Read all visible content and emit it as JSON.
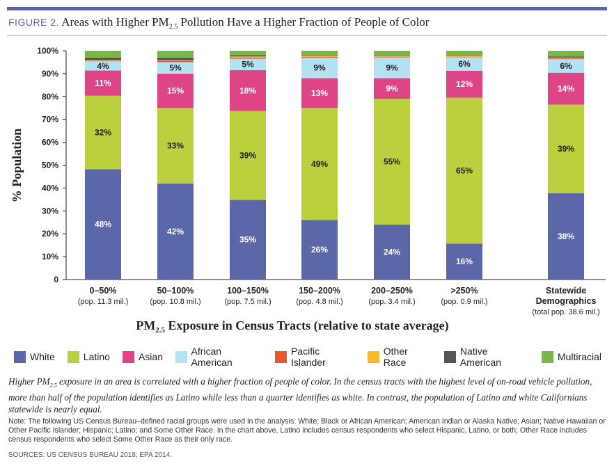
{
  "title": {
    "figure": "FIGURE 2.",
    "text_pre": "Areas with Higher PM",
    "sub": "2.5",
    "text_post": " Pollution Have a Higher Fraction of People of Color"
  },
  "chart_data": {
    "type": "bar",
    "stacked": true,
    "ylabel": "% Population",
    "xlabel_pre": "PM",
    "xlabel_sub": "2.5",
    "xlabel_post": " Exposure in Census Tracts (relative to state average)",
    "ylim": [
      0,
      100
    ],
    "yticks": [
      "0",
      "10%",
      "20%",
      "30%",
      "40%",
      "50%",
      "60%",
      "70%",
      "80%",
      "90%",
      "100%"
    ],
    "legend_position": "bottom",
    "categories": [
      {
        "label": "0–50%",
        "sub": "(pop. 11.3 mil.)"
      },
      {
        "label": "50–100%",
        "sub": "(pop. 10.8 mil.)"
      },
      {
        "label": "100–150%",
        "sub": "(pop. 7.5 mil.)"
      },
      {
        "label": "150–200%",
        "sub": "(pop. 4.8 mil.)"
      },
      {
        "label": "200–250%",
        "sub": "(pop. 3.4 mil.)"
      },
      {
        "label": ">250%",
        "sub": "(pop. 0.9 mil.)"
      },
      {
        "label": "Statewide Demographics",
        "sub": "(total pop. 38.6 mil.)"
      }
    ],
    "series": [
      {
        "name": "White",
        "color": "#5a67a8",
        "values": [
          48,
          42,
          35,
          26,
          24,
          16,
          38
        ],
        "labels": [
          "48%",
          "42%",
          "35%",
          "26%",
          "24%",
          "16%",
          "38%"
        ]
      },
      {
        "name": "Latino",
        "color": "#bcd03f",
        "values": [
          32,
          33,
          39,
          49,
          55,
          65,
          39
        ],
        "labels": [
          "32%",
          "33%",
          "39%",
          "49%",
          "55%",
          "65%",
          "39%"
        ]
      },
      {
        "name": "Asian",
        "color": "#de4585",
        "values": [
          11,
          15,
          18,
          13,
          9,
          12,
          14
        ],
        "labels": [
          "11%",
          "15%",
          "18%",
          "13%",
          "9%",
          "12%",
          "14%"
        ]
      },
      {
        "name": "African American",
        "color": "#b3e2f3",
        "values": [
          4,
          5,
          5,
          9,
          9,
          6,
          6
        ],
        "labels": [
          "4%",
          "5%",
          "5%",
          "9%",
          "9%",
          "6%",
          "6%"
        ]
      },
      {
        "name": "Pacific Islander",
        "color": "#e8582c",
        "values": [
          0.3,
          0.5,
          0.5,
          0.3,
          0.2,
          0.2,
          0.4
        ]
      },
      {
        "name": "Other Race",
        "color": "#f5b92e",
        "values": [
          0.3,
          0.3,
          0.5,
          0.5,
          0.5,
          0.6,
          0.3
        ]
      },
      {
        "name": "Native American",
        "color": "#555555",
        "values": [
          1,
          1.2,
          0.5,
          0.2,
          0.1,
          0.1,
          0.5
        ]
      },
      {
        "name": "Multiracial",
        "color": "#7ab648",
        "values": [
          3,
          3,
          2,
          2,
          2.2,
          2,
          2.5
        ]
      }
    ]
  },
  "caption": {
    "pre": "Higher PM",
    "sub": "2.5",
    "post": " exposure in an area is correlated with a higher fraction of people of color. In the census tracts with the highest level of on-road vehicle pollution, more than half of the population identifies as Latino while less than a quarter identifies as white. In contrast, the population of Latino and white Californians statewide is nearly equal."
  },
  "note": "Note: The following US Census Bureau–defined racial groups were used in the analysis: White; Black or African American; American Indian or Alaska Native; Asian; Native Hawaiian or Other Pacific Islander; Hispanic; Latino; and Some Other Race. In the chart above, Latino includes census respondents who select Hispanic, Latino, or both; Other Race includes census respondents who select Some Other Race as their only race.",
  "sources": "SOURCES: US CENSUS BUREAU 2018; EPA 2014."
}
